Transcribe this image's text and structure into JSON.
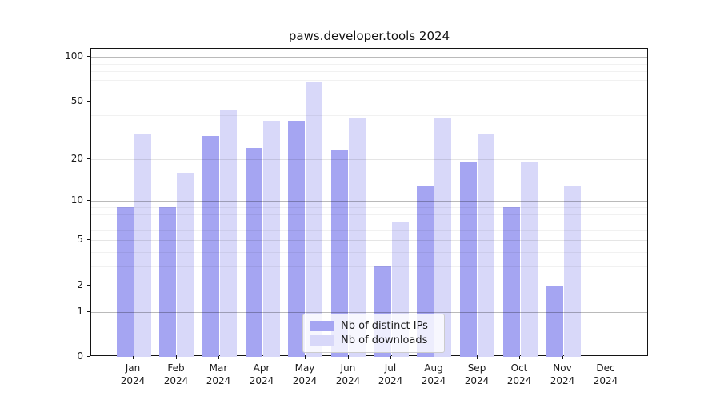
{
  "title": "paws.developer.tools 2024",
  "chart_data": {
    "type": "bar",
    "title": "paws.developer.tools 2024",
    "y_scale": "log(1+x)",
    "ylim": [
      0,
      100
    ],
    "yticks": [
      0,
      1,
      2,
      5,
      10,
      20,
      50,
      100
    ],
    "minor_gridlines": [
      3,
      4,
      6,
      7,
      8,
      9,
      30,
      40,
      60,
      70,
      80,
      90
    ],
    "grid": true,
    "categories": [
      "Jan",
      "Feb",
      "Mar",
      "Apr",
      "May",
      "Jun",
      "Jul",
      "Aug",
      "Sep",
      "Oct",
      "Nov",
      "Dec"
    ],
    "category_year": "2024",
    "series": [
      {
        "name": "Nb of distinct IPs",
        "color": "#a5a5f2",
        "values": [
          9,
          9,
          29,
          24,
          37,
          23,
          3,
          13,
          19,
          9,
          2,
          0
        ]
      },
      {
        "name": "Nb of downloads",
        "color": "#d8d8f9",
        "values": [
          30,
          16,
          44,
          37,
          67,
          38,
          7,
          38,
          30,
          19,
          13,
          0
        ]
      }
    ],
    "legend": {
      "entries": [
        "Nb of distinct IPs",
        "Nb of downloads"
      ],
      "position": "bottom-center"
    }
  }
}
